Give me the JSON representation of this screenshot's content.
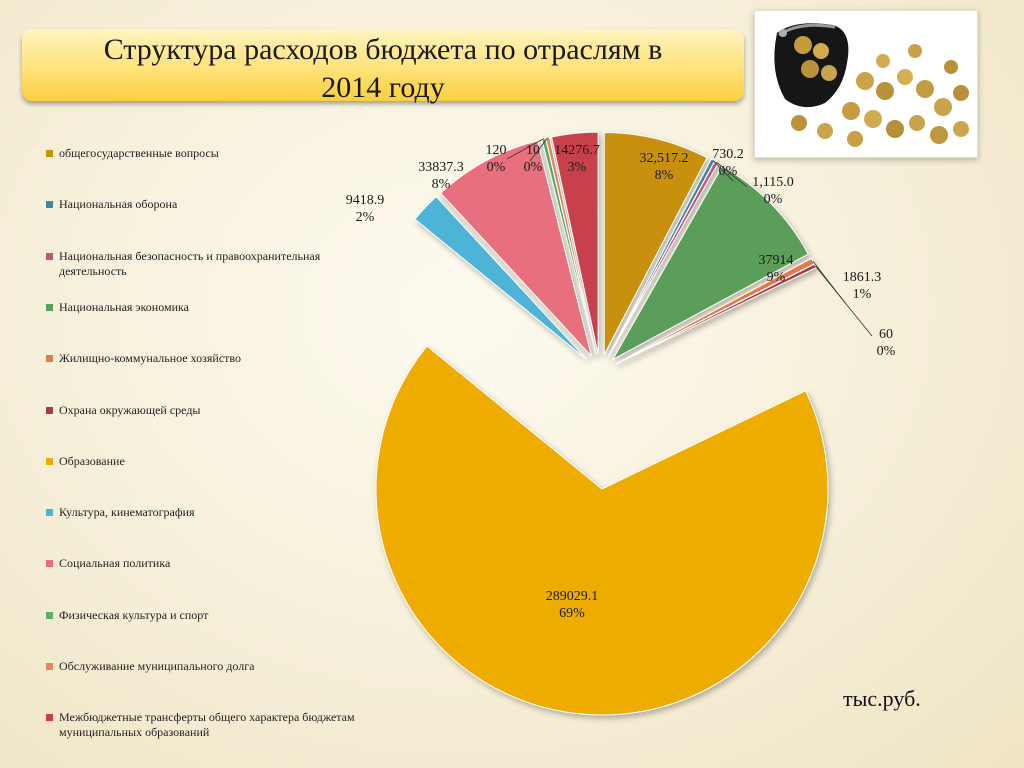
{
  "title": "Структура расходов бюджета по отраслям в 2014 году",
  "unit_label": "тыс.руб.",
  "chart_data": {
    "type": "pie",
    "title": "Структура расходов бюджета по отраслям в 2014 году",
    "legend_position": "left",
    "slices": [
      {
        "name": "общегосударственные вопросы",
        "value_label": "32,517.2",
        "value": 32517.2,
        "percent_label": "8%",
        "color": "#c9900e"
      },
      {
        "name": "Национальная оборона",
        "value_label": "730.2",
        "value": 730.2,
        "percent_label": "0%",
        "color": "#3e86a8"
      },
      {
        "name": "Национальная безопасность и правоохранительная деятельность",
        "value_label": "1,115.0",
        "value": 1115.0,
        "percent_label": "0%",
        "color": "#c2567a"
      },
      {
        "name": "Национальная экономика",
        "value_label": "37914",
        "value": 37914,
        "percent_label": "9%",
        "color": "#5a9e5a"
      },
      {
        "name": "Жилищно-коммунальное хозяйство",
        "value_label": "1861.3",
        "value": 1861.3,
        "percent_label": "1%",
        "color": "#e27a4a"
      },
      {
        "name": "Охрана окружающей среды",
        "value_label": "60",
        "value": 60,
        "percent_label": "0%",
        "color": "#a83a48"
      },
      {
        "name": "Образование",
        "value_label": "289029.1",
        "value": 289029.1,
        "percent_label": "69%",
        "color": "#eeac05"
      },
      {
        "name": "Культура, кинематография",
        "value_label": "9418.9",
        "value": 9418.9,
        "percent_label": "2%",
        "color": "#4db4d8"
      },
      {
        "name": "Социальная политика",
        "value_label": "33837.3",
        "value": 33837.3,
        "percent_label": "8%",
        "color": "#e8707e"
      },
      {
        "name": "Физическая культура и спорт",
        "value_label": "120",
        "value": 120,
        "percent_label": "0%",
        "color": "#5cb06a"
      },
      {
        "name": "Обслуживание  муниципального долга",
        "value_label": "10",
        "value": 10,
        "percent_label": "0%",
        "color": "#e08a5c"
      },
      {
        "name": "Межбюджетные трансферты общего характера бюджетам  муниципальных образований",
        "value_label": "14276.7",
        "value": 14276.7,
        "percent_label": "3%",
        "color": "#c9404e"
      }
    ]
  }
}
